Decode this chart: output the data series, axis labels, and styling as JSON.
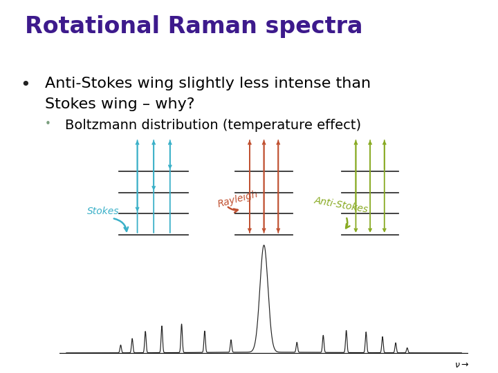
{
  "title": "Rotational Raman spectra",
  "title_color": "#3d1a8c",
  "title_fontsize": 24,
  "bullet1_line1": "Anti-Stokes wing slightly less intense than",
  "bullet1_line2": "Stokes wing – why?",
  "bullet1_color": "#000000",
  "bullet1_fontsize": 16,
  "bullet2": "Boltzmann distribution (temperature effect)",
  "bullet2_color": "#000000",
  "bullet2_fontsize": 14,
  "bullet2_dot_color": "#7a9e7e",
  "background_color": "#ffffff",
  "stokes_color": "#3ab0c8",
  "rayleigh_color": "#c05030",
  "antistokes_color": "#88aa22",
  "spectrum_color": "#222222",
  "figure_width": 7.2,
  "figure_height": 5.4,
  "dpi": 100
}
